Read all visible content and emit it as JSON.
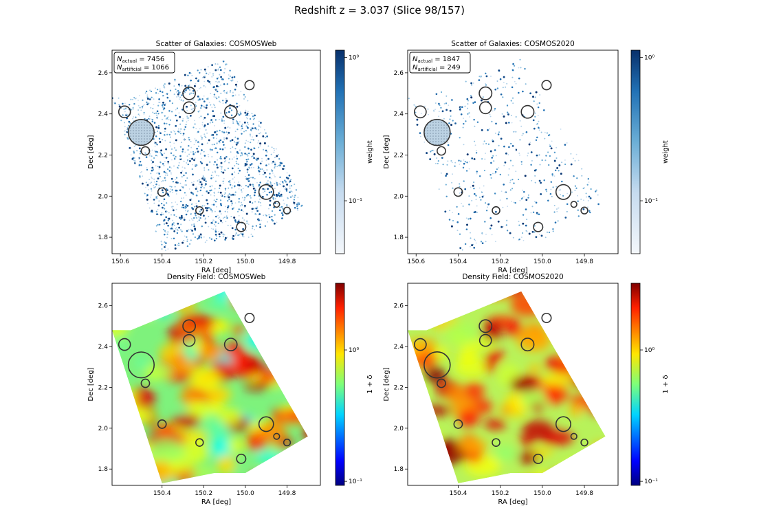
{
  "figure": {
    "suptitle": "Redshift z = 3.037  (Slice 98/157)",
    "colors": {
      "weight_low": "#f4f7fb",
      "weight_high": "#08306b",
      "density_cmap": "jet",
      "marker_ring": "#333333"
    }
  },
  "chart_data": [
    {
      "id": "scatter_cosmosweb",
      "type": "scatter",
      "title": "Scatter of Galaxies: COSMOSWeb",
      "xlabel": "RA [deg]",
      "ylabel": "Dec [deg]",
      "x_ticks": [
        "150.6",
        "150.4",
        "150.2",
        "150.0",
        "149.8"
      ],
      "y_ticks": [
        "2.6",
        "2.4",
        "2.2",
        "2.0",
        "1.8"
      ],
      "xlim": [
        150.64,
        149.64
      ],
      "ylim": [
        1.72,
        2.71
      ],
      "colorbar": {
        "label": "weight",
        "scale": "log",
        "ticks": [
          "10⁰",
          "10⁻¹"
        ]
      },
      "legend": {
        "N_actual": 7456,
        "N_artificial": 1066,
        "placement": "top-left"
      },
      "n_points_drawn": 1700,
      "mask_circles": [
        {
          "x": 150.5,
          "y": 2.31,
          "r": 0.062
        },
        {
          "x": 150.58,
          "y": 2.41,
          "r": 0.028
        },
        {
          "x": 150.27,
          "y": 2.5,
          "r": 0.03
        },
        {
          "x": 150.27,
          "y": 2.43,
          "r": 0.028
        },
        {
          "x": 150.07,
          "y": 2.41,
          "r": 0.03
        },
        {
          "x": 149.98,
          "y": 2.54,
          "r": 0.022
        },
        {
          "x": 149.9,
          "y": 2.02,
          "r": 0.035
        },
        {
          "x": 150.48,
          "y": 2.22,
          "r": 0.02
        },
        {
          "x": 150.4,
          "y": 2.02,
          "r": 0.02
        },
        {
          "x": 150.02,
          "y": 1.85,
          "r": 0.022
        },
        {
          "x": 150.22,
          "y": 1.93,
          "r": 0.018
        },
        {
          "x": 149.8,
          "y": 1.93,
          "r": 0.016
        },
        {
          "x": 149.85,
          "y": 1.96,
          "r": 0.014
        }
      ]
    },
    {
      "id": "scatter_cosmos2020",
      "type": "scatter",
      "title": "Scatter of Galaxies: COSMOS2020",
      "xlabel": "RA [deg]",
      "ylabel": "Dec [deg]",
      "x_ticks": [
        "150.6",
        "150.4",
        "150.2",
        "150.0",
        "149.8"
      ],
      "y_ticks": [
        "2.6",
        "2.4",
        "2.2",
        "2.0",
        "1.8"
      ],
      "xlim": [
        150.64,
        149.64
      ],
      "ylim": [
        1.72,
        2.71
      ],
      "colorbar": {
        "label": "weight",
        "scale": "log",
        "ticks": [
          "10⁰",
          "10⁻¹"
        ]
      },
      "legend": {
        "N_actual": 1847,
        "N_artificial": 249,
        "placement": "top-left"
      },
      "n_points_drawn": 560,
      "mask_circles": [
        {
          "x": 150.5,
          "y": 2.31,
          "r": 0.062
        },
        {
          "x": 150.58,
          "y": 2.41,
          "r": 0.028
        },
        {
          "x": 150.27,
          "y": 2.5,
          "r": 0.03
        },
        {
          "x": 150.27,
          "y": 2.43,
          "r": 0.028
        },
        {
          "x": 150.07,
          "y": 2.41,
          "r": 0.03
        },
        {
          "x": 149.98,
          "y": 2.54,
          "r": 0.022
        },
        {
          "x": 149.9,
          "y": 2.02,
          "r": 0.035
        },
        {
          "x": 150.48,
          "y": 2.22,
          "r": 0.02
        },
        {
          "x": 150.4,
          "y": 2.02,
          "r": 0.02
        },
        {
          "x": 150.02,
          "y": 1.85,
          "r": 0.022
        },
        {
          "x": 150.22,
          "y": 1.93,
          "r": 0.018
        },
        {
          "x": 149.8,
          "y": 1.93,
          "r": 0.016
        },
        {
          "x": 149.85,
          "y": 1.96,
          "r": 0.014
        }
      ]
    },
    {
      "id": "density_cosmosweb",
      "type": "heatmap",
      "title": "Density Field: COSMOSWeb",
      "xlabel": "RA [deg]",
      "ylabel": "Dec [deg]",
      "x_ticks": [
        "150.4",
        "150.2",
        "150.0",
        "149.8"
      ],
      "y_ticks": [
        "2.6",
        "2.4",
        "2.2",
        "2.0",
        "1.8"
      ],
      "xlim": [
        150.64,
        149.64
      ],
      "ylim": [
        1.72,
        2.71
      ],
      "colorbar": {
        "label": "1 + δ",
        "scale": "log",
        "ticks": [
          "10⁰",
          "10⁻¹"
        ]
      },
      "mask_circles": [
        {
          "x": 150.5,
          "y": 2.31,
          "r": 0.062
        },
        {
          "x": 150.58,
          "y": 2.41,
          "r": 0.028
        },
        {
          "x": 150.27,
          "y": 2.5,
          "r": 0.03
        },
        {
          "x": 150.27,
          "y": 2.43,
          "r": 0.028
        },
        {
          "x": 150.07,
          "y": 2.41,
          "r": 0.03
        },
        {
          "x": 149.98,
          "y": 2.54,
          "r": 0.022
        },
        {
          "x": 149.9,
          "y": 2.02,
          "r": 0.035
        },
        {
          "x": 150.48,
          "y": 2.22,
          "r": 0.02
        },
        {
          "x": 150.4,
          "y": 2.02,
          "r": 0.02
        },
        {
          "x": 150.02,
          "y": 1.85,
          "r": 0.022
        },
        {
          "x": 150.22,
          "y": 1.93,
          "r": 0.018
        },
        {
          "x": 149.8,
          "y": 1.93,
          "r": 0.016
        },
        {
          "x": 149.85,
          "y": 1.96,
          "r": 0.014
        }
      ]
    },
    {
      "id": "density_cosmos2020",
      "type": "heatmap",
      "title": "Density Field: COSMOS2020",
      "xlabel": "RA [deg]",
      "ylabel": "Dec [deg]",
      "x_ticks": [
        "150.4",
        "150.2",
        "150.0",
        "149.8"
      ],
      "y_ticks": [
        "2.6",
        "2.4",
        "2.2",
        "2.0",
        "1.8"
      ],
      "xlim": [
        150.64,
        149.64
      ],
      "ylim": [
        1.72,
        2.71
      ],
      "colorbar": {
        "label": "1 + δ",
        "scale": "log",
        "ticks": [
          "10⁰",
          "10⁻¹"
        ]
      },
      "mask_circles": [
        {
          "x": 150.5,
          "y": 2.31,
          "r": 0.062
        },
        {
          "x": 150.58,
          "y": 2.41,
          "r": 0.028
        },
        {
          "x": 150.27,
          "y": 2.5,
          "r": 0.03
        },
        {
          "x": 150.27,
          "y": 2.43,
          "r": 0.028
        },
        {
          "x": 150.07,
          "y": 2.41,
          "r": 0.03
        },
        {
          "x": 149.98,
          "y": 2.54,
          "r": 0.022
        },
        {
          "x": 149.9,
          "y": 2.02,
          "r": 0.035
        },
        {
          "x": 150.48,
          "y": 2.22,
          "r": 0.02
        },
        {
          "x": 150.4,
          "y": 2.02,
          "r": 0.02
        },
        {
          "x": 150.02,
          "y": 1.85,
          "r": 0.022
        },
        {
          "x": 150.22,
          "y": 1.93,
          "r": 0.018
        },
        {
          "x": 149.8,
          "y": 1.93,
          "r": 0.016
        },
        {
          "x": 149.85,
          "y": 1.96,
          "r": 0.014
        }
      ]
    }
  ]
}
